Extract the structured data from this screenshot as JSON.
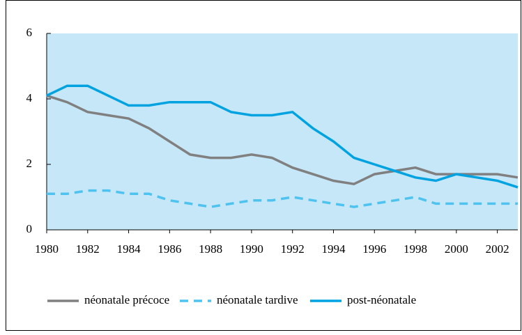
{
  "chart_data": {
    "type": "line",
    "x": [
      1980,
      1981,
      1982,
      1983,
      1984,
      1985,
      1986,
      1987,
      1988,
      1989,
      1990,
      1991,
      1992,
      1993,
      1994,
      1995,
      1996,
      1997,
      1998,
      1999,
      2000,
      2001,
      2002,
      2003
    ],
    "series": [
      {
        "name": "néonatale précoce",
        "color": "#808080",
        "dash": false,
        "values": [
          4.1,
          3.9,
          3.6,
          3.5,
          3.4,
          3.1,
          2.7,
          2.3,
          2.2,
          2.2,
          2.3,
          2.2,
          1.9,
          1.7,
          1.5,
          1.4,
          1.7,
          1.8,
          1.9,
          1.7,
          1.7,
          1.7,
          1.7,
          1.6
        ]
      },
      {
        "name": "néonatale tardive",
        "color": "#4fc3f0",
        "dash": true,
        "values": [
          1.1,
          1.1,
          1.2,
          1.2,
          1.1,
          1.1,
          0.9,
          0.8,
          0.7,
          0.8,
          0.9,
          0.9,
          1.0,
          0.9,
          0.8,
          0.7,
          0.8,
          0.9,
          1.0,
          0.8,
          0.8,
          0.8,
          0.8,
          0.8
        ]
      },
      {
        "name": "post-néonatale",
        "color": "#00a3e0",
        "dash": false,
        "values": [
          4.1,
          4.4,
          4.4,
          4.1,
          3.8,
          3.8,
          3.9,
          3.9,
          3.9,
          3.6,
          3.5,
          3.5,
          3.6,
          3.1,
          2.7,
          2.2,
          2.0,
          1.8,
          1.6,
          1.5,
          1.7,
          1.6,
          1.5,
          1.3
        ]
      }
    ],
    "xlim": [
      1980,
      2003
    ],
    "xticks": [
      1980,
      1982,
      1984,
      1986,
      1988,
      1990,
      1992,
      1994,
      1996,
      1998,
      2000,
      2002
    ],
    "ylim": [
      0,
      6
    ],
    "yticks": [
      0,
      2,
      4,
      6
    ],
    "plot_background": "#c6e7f8",
    "legend": "bottom"
  }
}
